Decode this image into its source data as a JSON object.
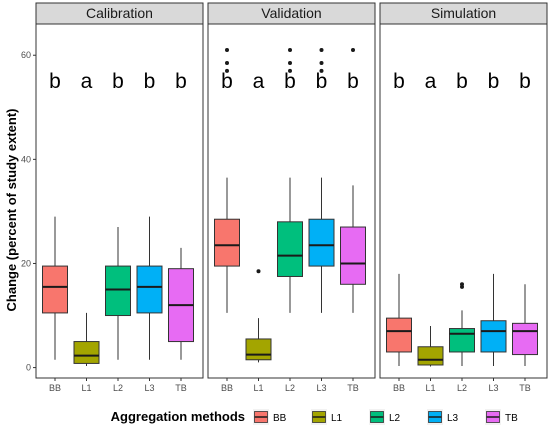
{
  "chart_data": {
    "type": "boxplot",
    "ylabel": "Change (percent of study extent)",
    "ylim": [
      -2,
      66
    ],
    "yticks": [
      0,
      20,
      40,
      60
    ],
    "grid": false,
    "categories": [
      "BB",
      "L1",
      "L2",
      "L3",
      "TB"
    ],
    "colors": {
      "BB": "#F8766D",
      "L1": "#A3A500",
      "L2": "#00BF7D",
      "L3": "#00B0F6",
      "TB": "#E76BF3"
    },
    "legend": {
      "title": "Aggregation methods",
      "position": "bottom",
      "entries": [
        "BB",
        "L1",
        "L2",
        "L3",
        "TB"
      ]
    },
    "panels": [
      {
        "title": "Calibration",
        "boxes": [
          {
            "category": "BB",
            "min": 1.5,
            "q1": 10.5,
            "median": 15.5,
            "q3": 19.5,
            "max": 29,
            "outliers": [],
            "letter": "b"
          },
          {
            "category": "L1",
            "min": 0.3,
            "q1": 0.8,
            "median": 2.3,
            "q3": 5.0,
            "max": 10.5,
            "outliers": [],
            "letter": "a"
          },
          {
            "category": "L2",
            "min": 1.5,
            "q1": 10.0,
            "median": 15.0,
            "q3": 19.5,
            "max": 27,
            "outliers": [],
            "letter": "b"
          },
          {
            "category": "L3",
            "min": 1.5,
            "q1": 10.5,
            "median": 15.5,
            "q3": 19.5,
            "max": 29,
            "outliers": [],
            "letter": "b"
          },
          {
            "category": "TB",
            "min": 1.5,
            "q1": 5.0,
            "median": 12.0,
            "q3": 19.0,
            "max": 23,
            "outliers": [],
            "letter": "b"
          }
        ]
      },
      {
        "title": "Validation",
        "boxes": [
          {
            "category": "BB",
            "min": 10.5,
            "q1": 19.5,
            "median": 23.5,
            "q3": 28.5,
            "max": 36.5,
            "outliers": [
              57,
              58.5,
              61
            ],
            "letter": "b"
          },
          {
            "category": "L1",
            "min": 1.0,
            "q1": 1.5,
            "median": 2.5,
            "q3": 5.5,
            "max": 9.5,
            "outliers": [
              18.5
            ],
            "letter": "a"
          },
          {
            "category": "L2",
            "min": 10.5,
            "q1": 17.5,
            "median": 21.5,
            "q3": 28.0,
            "max": 36.5,
            "outliers": [
              57,
              58.5,
              61
            ],
            "letter": "b"
          },
          {
            "category": "L3",
            "min": 10.5,
            "q1": 19.5,
            "median": 23.5,
            "q3": 28.5,
            "max": 36.5,
            "outliers": [
              57,
              58.5,
              61
            ],
            "letter": "b"
          },
          {
            "category": "TB",
            "min": 10.5,
            "q1": 16.0,
            "median": 20.0,
            "q3": 27.0,
            "max": 35.0,
            "outliers": [
              61
            ],
            "letter": "b"
          }
        ]
      },
      {
        "title": "Simulation",
        "boxes": [
          {
            "category": "BB",
            "min": 0.3,
            "q1": 3.0,
            "median": 7.0,
            "q3": 9.5,
            "max": 18.0,
            "outliers": [],
            "letter": "b"
          },
          {
            "category": "L1",
            "min": 0.2,
            "q1": 0.5,
            "median": 1.5,
            "q3": 4.0,
            "max": 8.0,
            "outliers": [],
            "letter": "a"
          },
          {
            "category": "L2",
            "min": 0.3,
            "q1": 3.0,
            "median": 6.5,
            "q3": 7.5,
            "max": 11.0,
            "outliers": [
              15.5,
              16.0
            ],
            "letter": "b"
          },
          {
            "category": "L3",
            "min": 0.3,
            "q1": 3.0,
            "median": 7.0,
            "q3": 9.0,
            "max": 18.0,
            "outliers": [],
            "letter": "b"
          },
          {
            "category": "TB",
            "min": 0.3,
            "q1": 2.5,
            "median": 7.0,
            "q3": 8.5,
            "max": 16.0,
            "outliers": [],
            "letter": "b"
          }
        ]
      }
    ]
  }
}
